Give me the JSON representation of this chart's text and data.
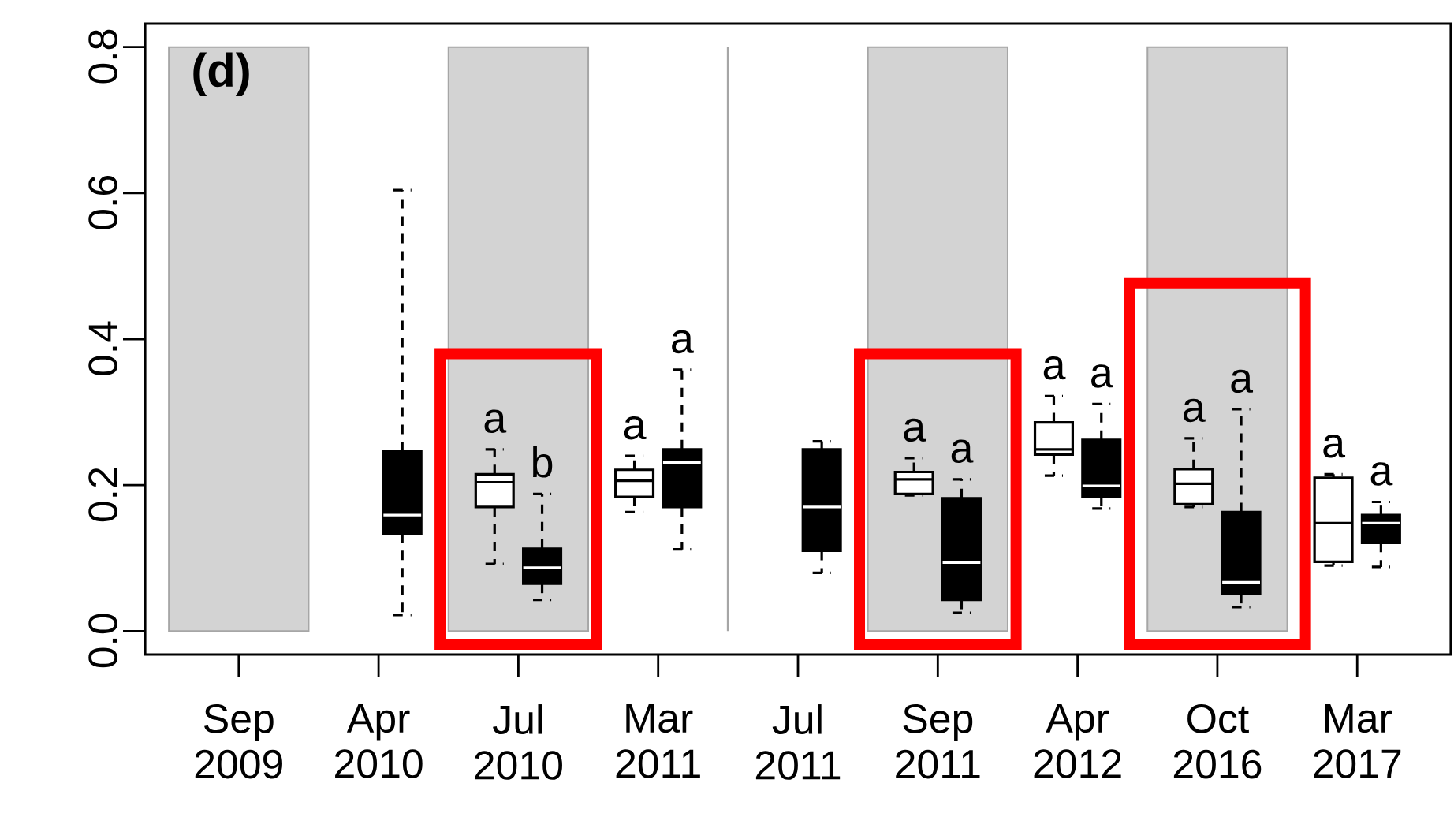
{
  "chart_data": {
    "type": "box",
    "categories": [
      "Sep 2009",
      "Apr 2010",
      "Jul 2010",
      "Mar 2011",
      "Jul 2011",
      "Sep 2011",
      "Apr 2012",
      "Oct 2016",
      "Mar 2017"
    ],
    "ylim": [
      -0.032,
      0.832
    ],
    "yticks": [
      {
        "value": 0,
        "label": "0.0"
      },
      0.2,
      0.4,
      0.6,
      0.8
    ],
    "series": [
      {
        "color": "#ffffff",
        "boxes": [
          null,
          null,
          {
            "low": 0.092,
            "q1": 0.17,
            "median": 0.204,
            "q3": 0.215,
            "high": 0.249
          },
          {
            "low": 0.163,
            "q1": 0.184,
            "median": 0.206,
            "q3": 0.221,
            "high": 0.24
          },
          null,
          {
            "low": 0.186,
            "q1": 0.188,
            "median": 0.208,
            "q3": 0.218,
            "high": 0.237
          },
          {
            "low": 0.213,
            "q1": 0.242,
            "median": 0.249,
            "q3": 0.286,
            "high": 0.322
          },
          {
            "low": 0.17,
            "q1": 0.174,
            "median": 0.202,
            "q3": 0.222,
            "high": 0.264
          },
          {
            "low": 0.09,
            "q1": 0.095,
            "median": 0.148,
            "q3": 0.21,
            "high": 0.215
          }
        ]
      },
      {
        "color": "#000000",
        "boxes": [
          null,
          {
            "low": 0.022,
            "q1": 0.134,
            "median": 0.159,
            "q3": 0.246,
            "high": 0.604
          },
          {
            "low": 0.043,
            "q1": 0.065,
            "median": 0.087,
            "q3": 0.113,
            "high": 0.188
          },
          {
            "low": 0.112,
            "q1": 0.17,
            "median": 0.231,
            "q3": 0.249,
            "high": 0.358
          },
          {
            "low": 0.08,
            "q1": 0.11,
            "median": 0.17,
            "q3": 0.249,
            "high": 0.26
          },
          {
            "low": 0.025,
            "q1": 0.043,
            "median": 0.094,
            "q3": 0.182,
            "high": 0.208
          },
          {
            "low": 0.168,
            "q1": 0.184,
            "median": 0.199,
            "q3": 0.262,
            "high": 0.311
          },
          {
            "low": 0.033,
            "q1": 0.051,
            "median": 0.067,
            "q3": 0.163,
            "high": 0.304
          },
          {
            "low": 0.088,
            "q1": 0.121,
            "median": 0.148,
            "q3": 0.159,
            "high": 0.177
          }
        ]
      }
    ],
    "bands": [
      {
        "axis": "x",
        "from": "Sep 2009",
        "to": "Sep 2009",
        "color": "#d3d3d3"
      },
      {
        "axis": "x",
        "from": "Jul 2010",
        "to": "Jul 2010",
        "color": "#d3d3d3"
      },
      {
        "axis": "x",
        "from": "Sep 2011",
        "to": "Sep 2011",
        "color": "#d3d3d3"
      },
      {
        "axis": "x",
        "from": "Oct 2016",
        "to": "Oct 2016",
        "color": "#d3d3d3"
      }
    ],
    "annotations": [
      "(d)",
      "a",
      "b",
      "a",
      "a",
      "a",
      "a",
      "a",
      "a",
      "a",
      "a",
      "a",
      "a"
    ]
  }
}
